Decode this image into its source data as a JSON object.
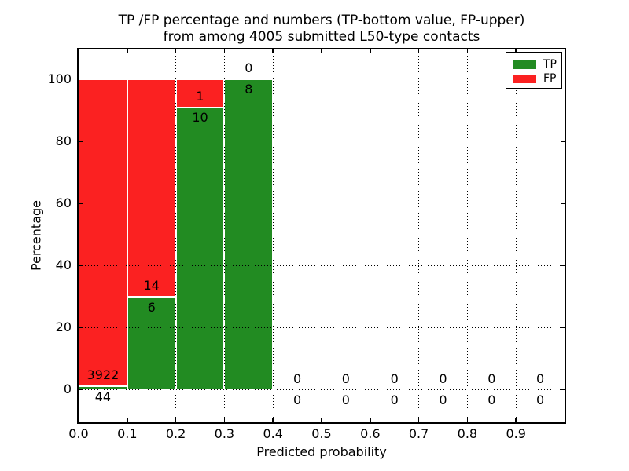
{
  "chart_data": {
    "type": "bar",
    "stacked": true,
    "title_lines": [
      "TP /FP percentage and numbers (TP-bottom value, FP-upper)",
      "from among 4005 submitted L50-type contacts"
    ],
    "xlabel": "Predicted probability",
    "ylabel": "Percentage",
    "xlim": [
      0.0,
      1.0
    ],
    "ylim": [
      -10.5,
      109.5
    ],
    "x_ticks": [
      0.0,
      0.1,
      0.2,
      0.3,
      0.4,
      0.5,
      0.6,
      0.7,
      0.8,
      0.9
    ],
    "x_tick_labels": [
      "0.0",
      "0.1",
      "0.2",
      "0.3",
      "0.4",
      "0.5",
      "0.6",
      "0.7",
      "0.8",
      "0.9"
    ],
    "y_ticks": [
      0,
      20,
      40,
      60,
      80,
      100
    ],
    "y_tick_labels": [
      "0",
      "20",
      "40",
      "60",
      "80",
      "100"
    ],
    "grid": true,
    "legend_position": "upper right",
    "total_submitted_contacts": 4005,
    "series": [
      {
        "name": "TP",
        "color": "#228b22"
      },
      {
        "name": "FP",
        "color": "#fb2121"
      }
    ],
    "bins": [
      {
        "range": [
          0.0,
          0.1
        ],
        "tp": 44,
        "fp": 3922,
        "tp_percent": 1.11
      },
      {
        "range": [
          0.1,
          0.2
        ],
        "tp": 6,
        "fp": 14,
        "tp_percent": 30.0
      },
      {
        "range": [
          0.2,
          0.3
        ],
        "tp": 10,
        "fp": 1,
        "tp_percent": 90.91
      },
      {
        "range": [
          0.3,
          0.4
        ],
        "tp": 8,
        "fp": 0,
        "tp_percent": 100.0
      },
      {
        "range": [
          0.4,
          0.5
        ],
        "tp": 0,
        "fp": 0,
        "tp_percent": null
      },
      {
        "range": [
          0.5,
          0.6
        ],
        "tp": 0,
        "fp": 0,
        "tp_percent": null
      },
      {
        "range": [
          0.6,
          0.7
        ],
        "tp": 0,
        "fp": 0,
        "tp_percent": null
      },
      {
        "range": [
          0.7,
          0.8
        ],
        "tp": 0,
        "fp": 0,
        "tp_percent": null
      },
      {
        "range": [
          0.8,
          0.9
        ],
        "tp": 0,
        "fp": 0,
        "tp_percent": null
      },
      {
        "range": [
          0.9,
          1.0
        ],
        "tp": 0,
        "fp": 0,
        "tp_percent": null
      }
    ]
  }
}
